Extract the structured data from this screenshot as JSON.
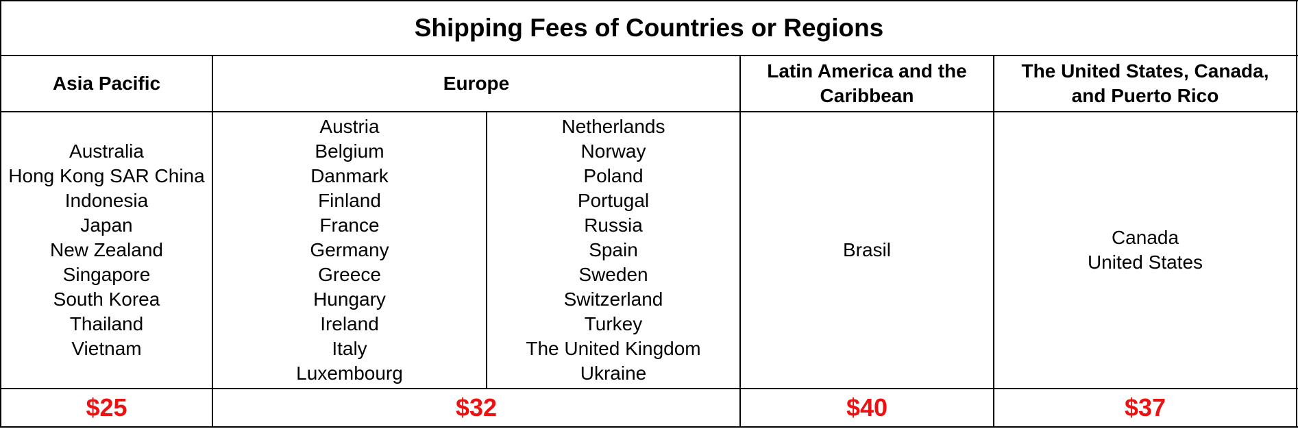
{
  "title": "Shipping Fees of Countries or Regions",
  "price_color": "#ee1111",
  "regions": {
    "asia_pacific": {
      "header": "Asia Pacific",
      "countries": [
        "Australia",
        "Hong Kong SAR China",
        "Indonesia",
        "Japan",
        "New Zealand",
        "Singapore",
        "South Korea",
        "Thailand",
        "Vietnam"
      ],
      "fee": "$25"
    },
    "europe": {
      "header": "Europe",
      "countries_col1": [
        "Austria",
        "Belgium",
        "Danmark",
        "Finland",
        "France",
        "Germany",
        "Greece",
        "Hungary",
        "Ireland",
        "Italy",
        "Luxembourg"
      ],
      "countries_col2": [
        "Netherlands",
        "Norway",
        "Poland",
        "Portugal",
        "Russia",
        "Spain",
        "Sweden",
        "Switzerland",
        "Turkey",
        "The United Kingdom",
        "Ukraine"
      ],
      "fee": "$32"
    },
    "latin_america": {
      "header_line1": "Latin America and the",
      "header_line2": "Caribbean",
      "countries": [
        "Brasil"
      ],
      "fee": "$40"
    },
    "north_america": {
      "header_line1": "The United States, Canada,",
      "header_line2": "and Puerto Rico",
      "countries": [
        "Canada",
        "United States"
      ],
      "fee": "$37"
    }
  }
}
